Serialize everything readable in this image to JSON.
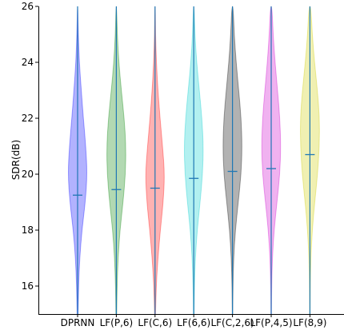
{
  "chart_data": {
    "type": "violin",
    "ylabel": "SDR(dB)",
    "ylim": [
      15,
      26
    ],
    "yticks": [
      16,
      18,
      20,
      22,
      24,
      26
    ],
    "categories": [
      "DPRNN",
      "LF(P,6)",
      "LF(C,6)",
      "LF(6,6)",
      "LF(C,2,6)",
      "LF(P,4,5)",
      "LF(8,9)"
    ],
    "colors": [
      "#0000ff",
      "#008000",
      "#ff0000",
      "#00cccc",
      "#000000",
      "#cc00cc",
      "#cccc00"
    ],
    "medians": [
      19.25,
      19.45,
      19.5,
      19.85,
      20.1,
      20.2,
      20.7
    ],
    "extrema": [
      [
        15,
        26
      ],
      [
        15,
        26
      ],
      [
        15,
        26
      ],
      [
        15,
        26
      ],
      [
        15,
        26
      ],
      [
        15,
        26
      ],
      [
        15,
        26
      ]
    ],
    "density_profiles": [
      [
        [
          15.0,
          0.05
        ],
        [
          16.0,
          0.1
        ],
        [
          17.0,
          0.22
        ],
        [
          18.0,
          0.45
        ],
        [
          19.0,
          0.8
        ],
        [
          20.0,
          1.0
        ],
        [
          21.0,
          0.85
        ],
        [
          22.0,
          0.6
        ],
        [
          23.0,
          0.38
        ],
        [
          24.0,
          0.18
        ],
        [
          25.0,
          0.07
        ],
        [
          26.0,
          0.02
        ]
      ],
      [
        [
          15.0,
          0.04
        ],
        [
          16.0,
          0.08
        ],
        [
          17.0,
          0.18
        ],
        [
          18.0,
          0.38
        ],
        [
          19.0,
          0.7
        ],
        [
          20.0,
          0.95
        ],
        [
          21.0,
          1.0
        ],
        [
          22.0,
          0.82
        ],
        [
          23.0,
          0.52
        ],
        [
          24.0,
          0.26
        ],
        [
          25.0,
          0.1
        ],
        [
          26.0,
          0.03
        ]
      ],
      [
        [
          15.0,
          0.05
        ],
        [
          16.0,
          0.12
        ],
        [
          17.0,
          0.3
        ],
        [
          18.0,
          0.55
        ],
        [
          19.0,
          0.85
        ],
        [
          20.0,
          1.0
        ],
        [
          21.0,
          0.78
        ],
        [
          22.0,
          0.52
        ],
        [
          23.0,
          0.3
        ],
        [
          24.0,
          0.14
        ],
        [
          25.0,
          0.05
        ],
        [
          26.0,
          0.02
        ]
      ],
      [
        [
          15.0,
          0.03
        ],
        [
          16.0,
          0.07
        ],
        [
          17.0,
          0.16
        ],
        [
          18.0,
          0.36
        ],
        [
          19.0,
          0.66
        ],
        [
          20.0,
          0.92
        ],
        [
          21.0,
          1.0
        ],
        [
          22.0,
          0.85
        ],
        [
          23.0,
          0.58
        ],
        [
          24.0,
          0.3
        ],
        [
          25.0,
          0.12
        ],
        [
          26.0,
          0.04
        ]
      ],
      [
        [
          15.0,
          0.02
        ],
        [
          16.0,
          0.05
        ],
        [
          17.0,
          0.12
        ],
        [
          18.0,
          0.3
        ],
        [
          19.0,
          0.6
        ],
        [
          20.0,
          0.9
        ],
        [
          21.0,
          1.0
        ],
        [
          22.0,
          0.9
        ],
        [
          23.0,
          0.65
        ],
        [
          24.0,
          0.38
        ],
        [
          25.0,
          0.18
        ],
        [
          26.0,
          0.07
        ]
      ],
      [
        [
          15.0,
          0.02
        ],
        [
          16.0,
          0.05
        ],
        [
          17.0,
          0.12
        ],
        [
          18.0,
          0.3
        ],
        [
          19.0,
          0.6
        ],
        [
          20.0,
          0.9
        ],
        [
          21.0,
          1.0
        ],
        [
          22.0,
          0.9
        ],
        [
          23.0,
          0.66
        ],
        [
          24.0,
          0.4
        ],
        [
          25.0,
          0.2
        ],
        [
          26.0,
          0.08
        ]
      ],
      [
        [
          15.0,
          0.02
        ],
        [
          16.0,
          0.04
        ],
        [
          17.0,
          0.1
        ],
        [
          18.0,
          0.24
        ],
        [
          19.0,
          0.5
        ],
        [
          20.0,
          0.8
        ],
        [
          21.0,
          0.98
        ],
        [
          22.0,
          1.0
        ],
        [
          23.0,
          0.78
        ],
        [
          24.0,
          0.48
        ],
        [
          25.0,
          0.24
        ],
        [
          26.0,
          0.1
        ]
      ]
    ]
  }
}
